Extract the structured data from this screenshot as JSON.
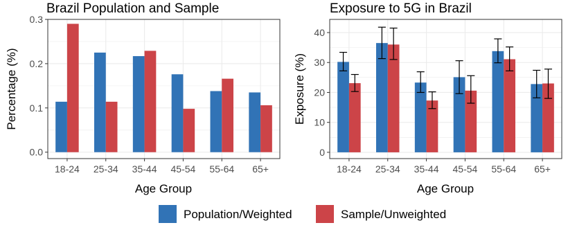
{
  "colors": {
    "population": "#3173b6",
    "sample": "#cc4448",
    "grid": "#ebebeb",
    "border": "#333333"
  },
  "legend": {
    "items": [
      {
        "label": "Population/Weighted",
        "color": "#3173b6"
      },
      {
        "label": "Sample/Unweighted",
        "color": "#cc4448"
      }
    ],
    "position": "bottom"
  },
  "chart_data": [
    {
      "type": "bar",
      "title": "Brazil Population and Sample",
      "xlabel": "Age Group",
      "ylabel": "Percentage (%)",
      "categories": [
        "18-24",
        "25-34",
        "35-44",
        "45-54",
        "55-64",
        "65+"
      ],
      "ylim": [
        -0.0145,
        0.3
      ],
      "yticks": [
        0.0,
        0.1,
        0.2,
        0.3
      ],
      "ytick_labels": [
        "0.0",
        "0.1",
        "0.2",
        "0.3"
      ],
      "grid": true,
      "series": [
        {
          "name": "Population/Weighted",
          "values": [
            0.114,
            0.225,
            0.217,
            0.176,
            0.138,
            0.135
          ]
        },
        {
          "name": "Sample/Unweighted",
          "values": [
            0.29,
            0.114,
            0.229,
            0.098,
            0.166,
            0.106
          ]
        }
      ]
    },
    {
      "type": "bar",
      "title": "Exposure to 5G in Brazil",
      "xlabel": "Age Group",
      "ylabel": "Exposure (%)",
      "categories": [
        "18-24",
        "25-34",
        "35-44",
        "45-54",
        "55-64",
        "65+"
      ],
      "ylim": [
        -2.1,
        44.4
      ],
      "yticks": [
        0,
        10,
        20,
        30,
        40
      ],
      "ytick_labels": [
        "0",
        "10",
        "20",
        "30",
        "40"
      ],
      "grid": true,
      "series": [
        {
          "name": "Population/Weighted",
          "values": [
            30.2,
            36.5,
            23.3,
            25.1,
            33.8,
            22.8
          ],
          "error_low": [
            27.2,
            31.3,
            20.0,
            19.6,
            29.9,
            18.2
          ],
          "error_high": [
            33.4,
            41.8,
            26.9,
            30.6,
            37.9,
            27.4
          ]
        },
        {
          "name": "Sample/Unweighted",
          "values": [
            23.1,
            36.0,
            17.3,
            20.6,
            31.1,
            23.0
          ],
          "error_low": [
            20.3,
            31.0,
            14.6,
            16.4,
            27.2,
            18.0
          ],
          "error_high": [
            26.0,
            41.5,
            20.2,
            25.6,
            35.2,
            27.8
          ]
        }
      ]
    }
  ]
}
